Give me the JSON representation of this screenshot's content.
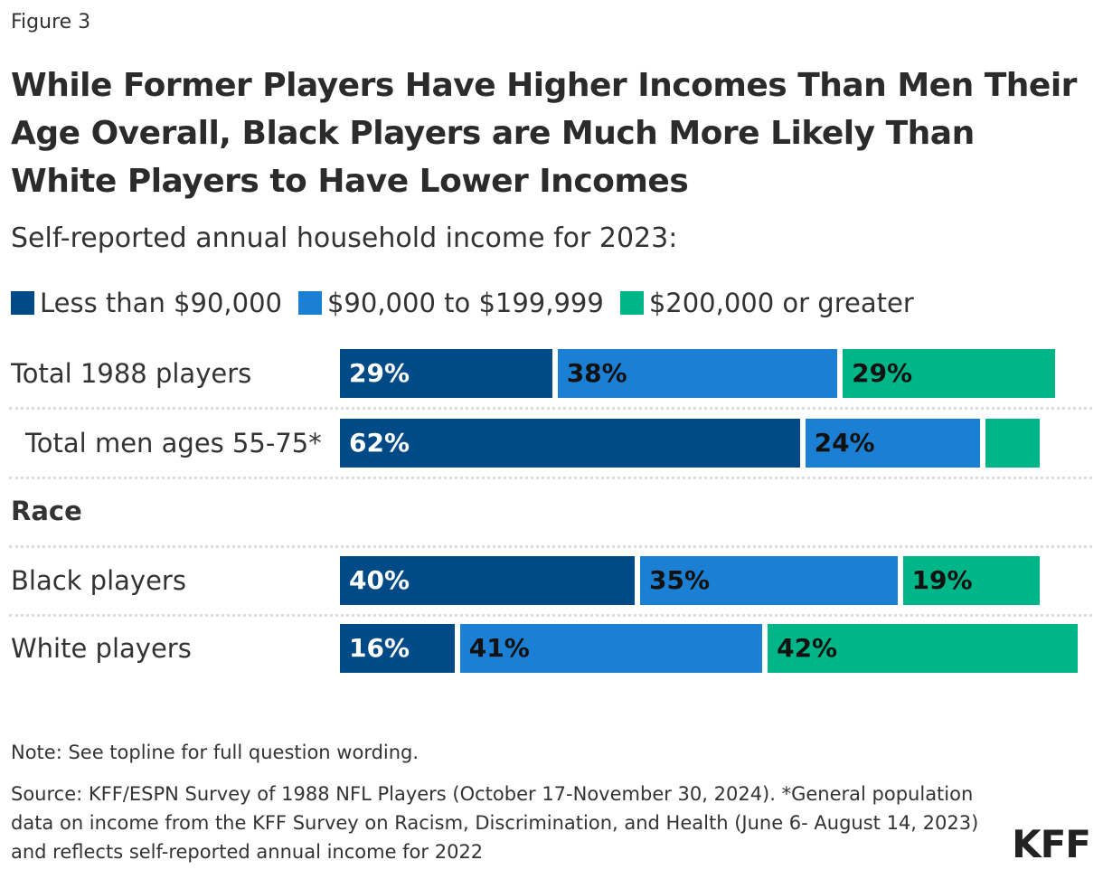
{
  "figure_label": "Figure 3",
  "chart_data": {
    "type": "bar",
    "orientation": "horizontal",
    "stacked": true,
    "title": "While Former Players Have Higher Incomes Than Men Their Age Overall, Black Players are Much More Likely Than White Players to Have Lower Incomes",
    "subtitle": "Self-reported annual household income for 2023:",
    "legend_placement": "top-left",
    "grid": false,
    "series": [
      {
        "name": "Less than $90,000",
        "color": "#004b87"
      },
      {
        "name": "$90,000 to $199,999",
        "color": "#1b80d3"
      },
      {
        "name": "$200,000 or greater",
        "color": "#00b588"
      }
    ],
    "groups": [
      {
        "header": "",
        "rows": [
          {
            "label": "Total 1988 players",
            "values": [
              29,
              38,
              29
            ],
            "data_labels": [
              "29%",
              "38%",
              "29%"
            ]
          },
          {
            "label": "Total men ages 55-75*",
            "values": [
              62,
              24,
              8
            ],
            "data_labels": [
              "62%",
              "24%",
              ""
            ]
          }
        ]
      },
      {
        "header": "Race",
        "rows": [
          {
            "label": "Black players",
            "values": [
              40,
              35,
              19
            ],
            "data_labels": [
              "40%",
              "35%",
              "19%"
            ]
          },
          {
            "label": "White players",
            "values": [
              16,
              41,
              42
            ],
            "data_labels": [
              "16%",
              "41%",
              "42%"
            ]
          }
        ]
      }
    ]
  },
  "note": "Note: See topline for full question wording.",
  "source": "Source: KFF/ESPN Survey of 1988 NFL Players (October 17-November 30, 2024). *General population data on income from the KFF Survey on Racism, Discrimination, and Health (June 6- August 14, 2023) and reflects self-reported annual income for 2022",
  "logo": "KFF"
}
